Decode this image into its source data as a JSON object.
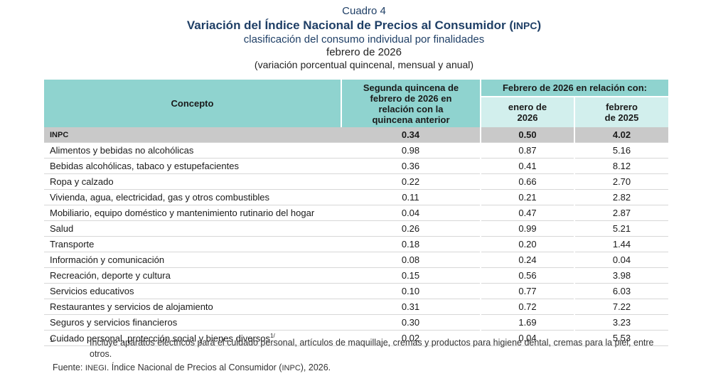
{
  "header": {
    "label": "Cuadro 4",
    "title_a": "Variación del Índice Nacional de Precios al Consumidor (",
    "title_abbr": "INPC",
    "title_b": ")",
    "subtitle": "clasificación del consumo individual por finalidades",
    "period": "febrero de 2026",
    "units": "(variación porcentual quincenal, mensual y anual)"
  },
  "table": {
    "col_concept": "Concepto",
    "col_biweekly": "Segunda quincena de febrero de 2026 en relación con la quincena anterior",
    "col_group": "Febrero de 2026 en relación con:",
    "col_jan": "enero de 2026",
    "col_feb": "febrero de 2025",
    "rows": [
      {
        "name": "INPC",
        "q": "0.34",
        "m": "0.50",
        "a": "4.02"
      },
      {
        "name": "Alimentos y bebidas no alcohólicas",
        "q": "0.98",
        "m": "0.87",
        "a": "5.16"
      },
      {
        "name": "Bebidas alcohólicas, tabaco y estupefacientes",
        "q": "0.36",
        "m": "0.41",
        "a": "8.12"
      },
      {
        "name": "Ropa y calzado",
        "q": "0.22",
        "m": "0.66",
        "a": "2.70"
      },
      {
        "name": "Vivienda, agua, electricidad, gas y otros combustibles",
        "q": "0.11",
        "m": "0.21",
        "a": "2.82"
      },
      {
        "name": "Mobiliario, equipo doméstico y mantenimiento rutinario del hogar",
        "q": "0.04",
        "m": "0.47",
        "a": "2.87"
      },
      {
        "name": "Salud",
        "q": "0.26",
        "m": "0.99",
        "a": "5.21"
      },
      {
        "name": "Transporte",
        "q": "0.18",
        "m": "0.20",
        "a": "1.44"
      },
      {
        "name": "Información y comunicación",
        "q": "0.08",
        "m": "0.24",
        "a": "0.04"
      },
      {
        "name": "Recreación, deporte y cultura",
        "q": "0.15",
        "m": "0.56",
        "a": "3.98"
      },
      {
        "name": "Servicios educativos",
        "q": "0.10",
        "m": "0.77",
        "a": "6.03"
      },
      {
        "name": "Restaurantes y servicios de alojamiento",
        "q": "0.31",
        "m": "0.72",
        "a": "7.22"
      },
      {
        "name": "Seguros y servicios financieros",
        "q": "0.30",
        "m": "1.69",
        "a": "3.23"
      },
      {
        "name": "Cuidado personal, protección social y bienes diversos",
        "q": "0.02",
        "m": "0.04",
        "a": "5.53",
        "footnote": "1/"
      }
    ]
  },
  "footnote": {
    "mark": "1/",
    "text": "Incluye aparatos eléctricos para el cuidado personal, artículos de maquillaje, cremas y productos para higiene dental, cremas para la piel, entre otros."
  },
  "source": {
    "prefix": "Fuente: ",
    "org": "INEGI",
    "text_a": ". Índice Nacional de Precios al Consumidor (",
    "abbr": "INPC",
    "text_b": "), 2026."
  }
}
